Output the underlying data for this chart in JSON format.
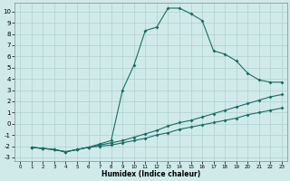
{
  "xlabel": "Humidex (Indice chaleur)",
  "bg_color": "#d0eaea",
  "grid_color": "#b0d0d0",
  "line_color": "#1a6e65",
  "xlim": [
    -0.5,
    23.5
  ],
  "ylim": [
    -3.3,
    10.8
  ],
  "yticks": [
    -3,
    -2,
    -1,
    0,
    1,
    2,
    3,
    4,
    5,
    6,
    7,
    8,
    9,
    10
  ],
  "xticks": [
    0,
    1,
    2,
    3,
    4,
    5,
    6,
    7,
    8,
    9,
    10,
    11,
    12,
    13,
    14,
    15,
    16,
    17,
    18,
    19,
    20,
    21,
    22,
    23
  ],
  "line1_x": [
    1,
    2,
    3,
    4,
    5,
    6,
    7,
    8,
    9,
    10,
    11,
    12,
    13,
    14,
    15,
    16,
    17,
    18,
    19,
    20,
    21,
    22,
    23
  ],
  "line1_y": [
    -2.1,
    -2.2,
    -2.3,
    -2.5,
    -2.3,
    -2.1,
    -2.0,
    -1.9,
    -1.7,
    -1.5,
    -1.3,
    -1.0,
    -0.8,
    -0.5,
    -0.3,
    -0.1,
    0.1,
    0.3,
    0.5,
    0.8,
    1.0,
    1.2,
    1.4
  ],
  "line2_x": [
    1,
    2,
    3,
    4,
    5,
    6,
    7,
    8,
    9,
    10,
    11,
    12,
    13,
    14,
    15,
    16,
    17,
    18,
    19,
    20,
    21,
    22,
    23
  ],
  "line2_y": [
    -2.1,
    -2.2,
    -2.3,
    -2.5,
    -2.3,
    -2.1,
    -1.9,
    -1.7,
    -1.5,
    -1.2,
    -0.9,
    -0.6,
    -0.2,
    0.1,
    0.3,
    0.6,
    0.9,
    1.2,
    1.5,
    1.8,
    2.1,
    2.4,
    2.6
  ],
  "line3_x": [
    1,
    2,
    3,
    4,
    5,
    6,
    7,
    8,
    9,
    10,
    11,
    12,
    13,
    14,
    15,
    16,
    17,
    18,
    19,
    20,
    21,
    22,
    23
  ],
  "line3_y": [
    -2.1,
    -2.2,
    -2.3,
    -2.5,
    -2.3,
    -2.1,
    -1.8,
    -1.5,
    3.0,
    5.2,
    8.3,
    8.6,
    10.3,
    10.3,
    9.8,
    9.2,
    6.5,
    6.2,
    5.6,
    4.5,
    3.9,
    3.7,
    3.7
  ]
}
